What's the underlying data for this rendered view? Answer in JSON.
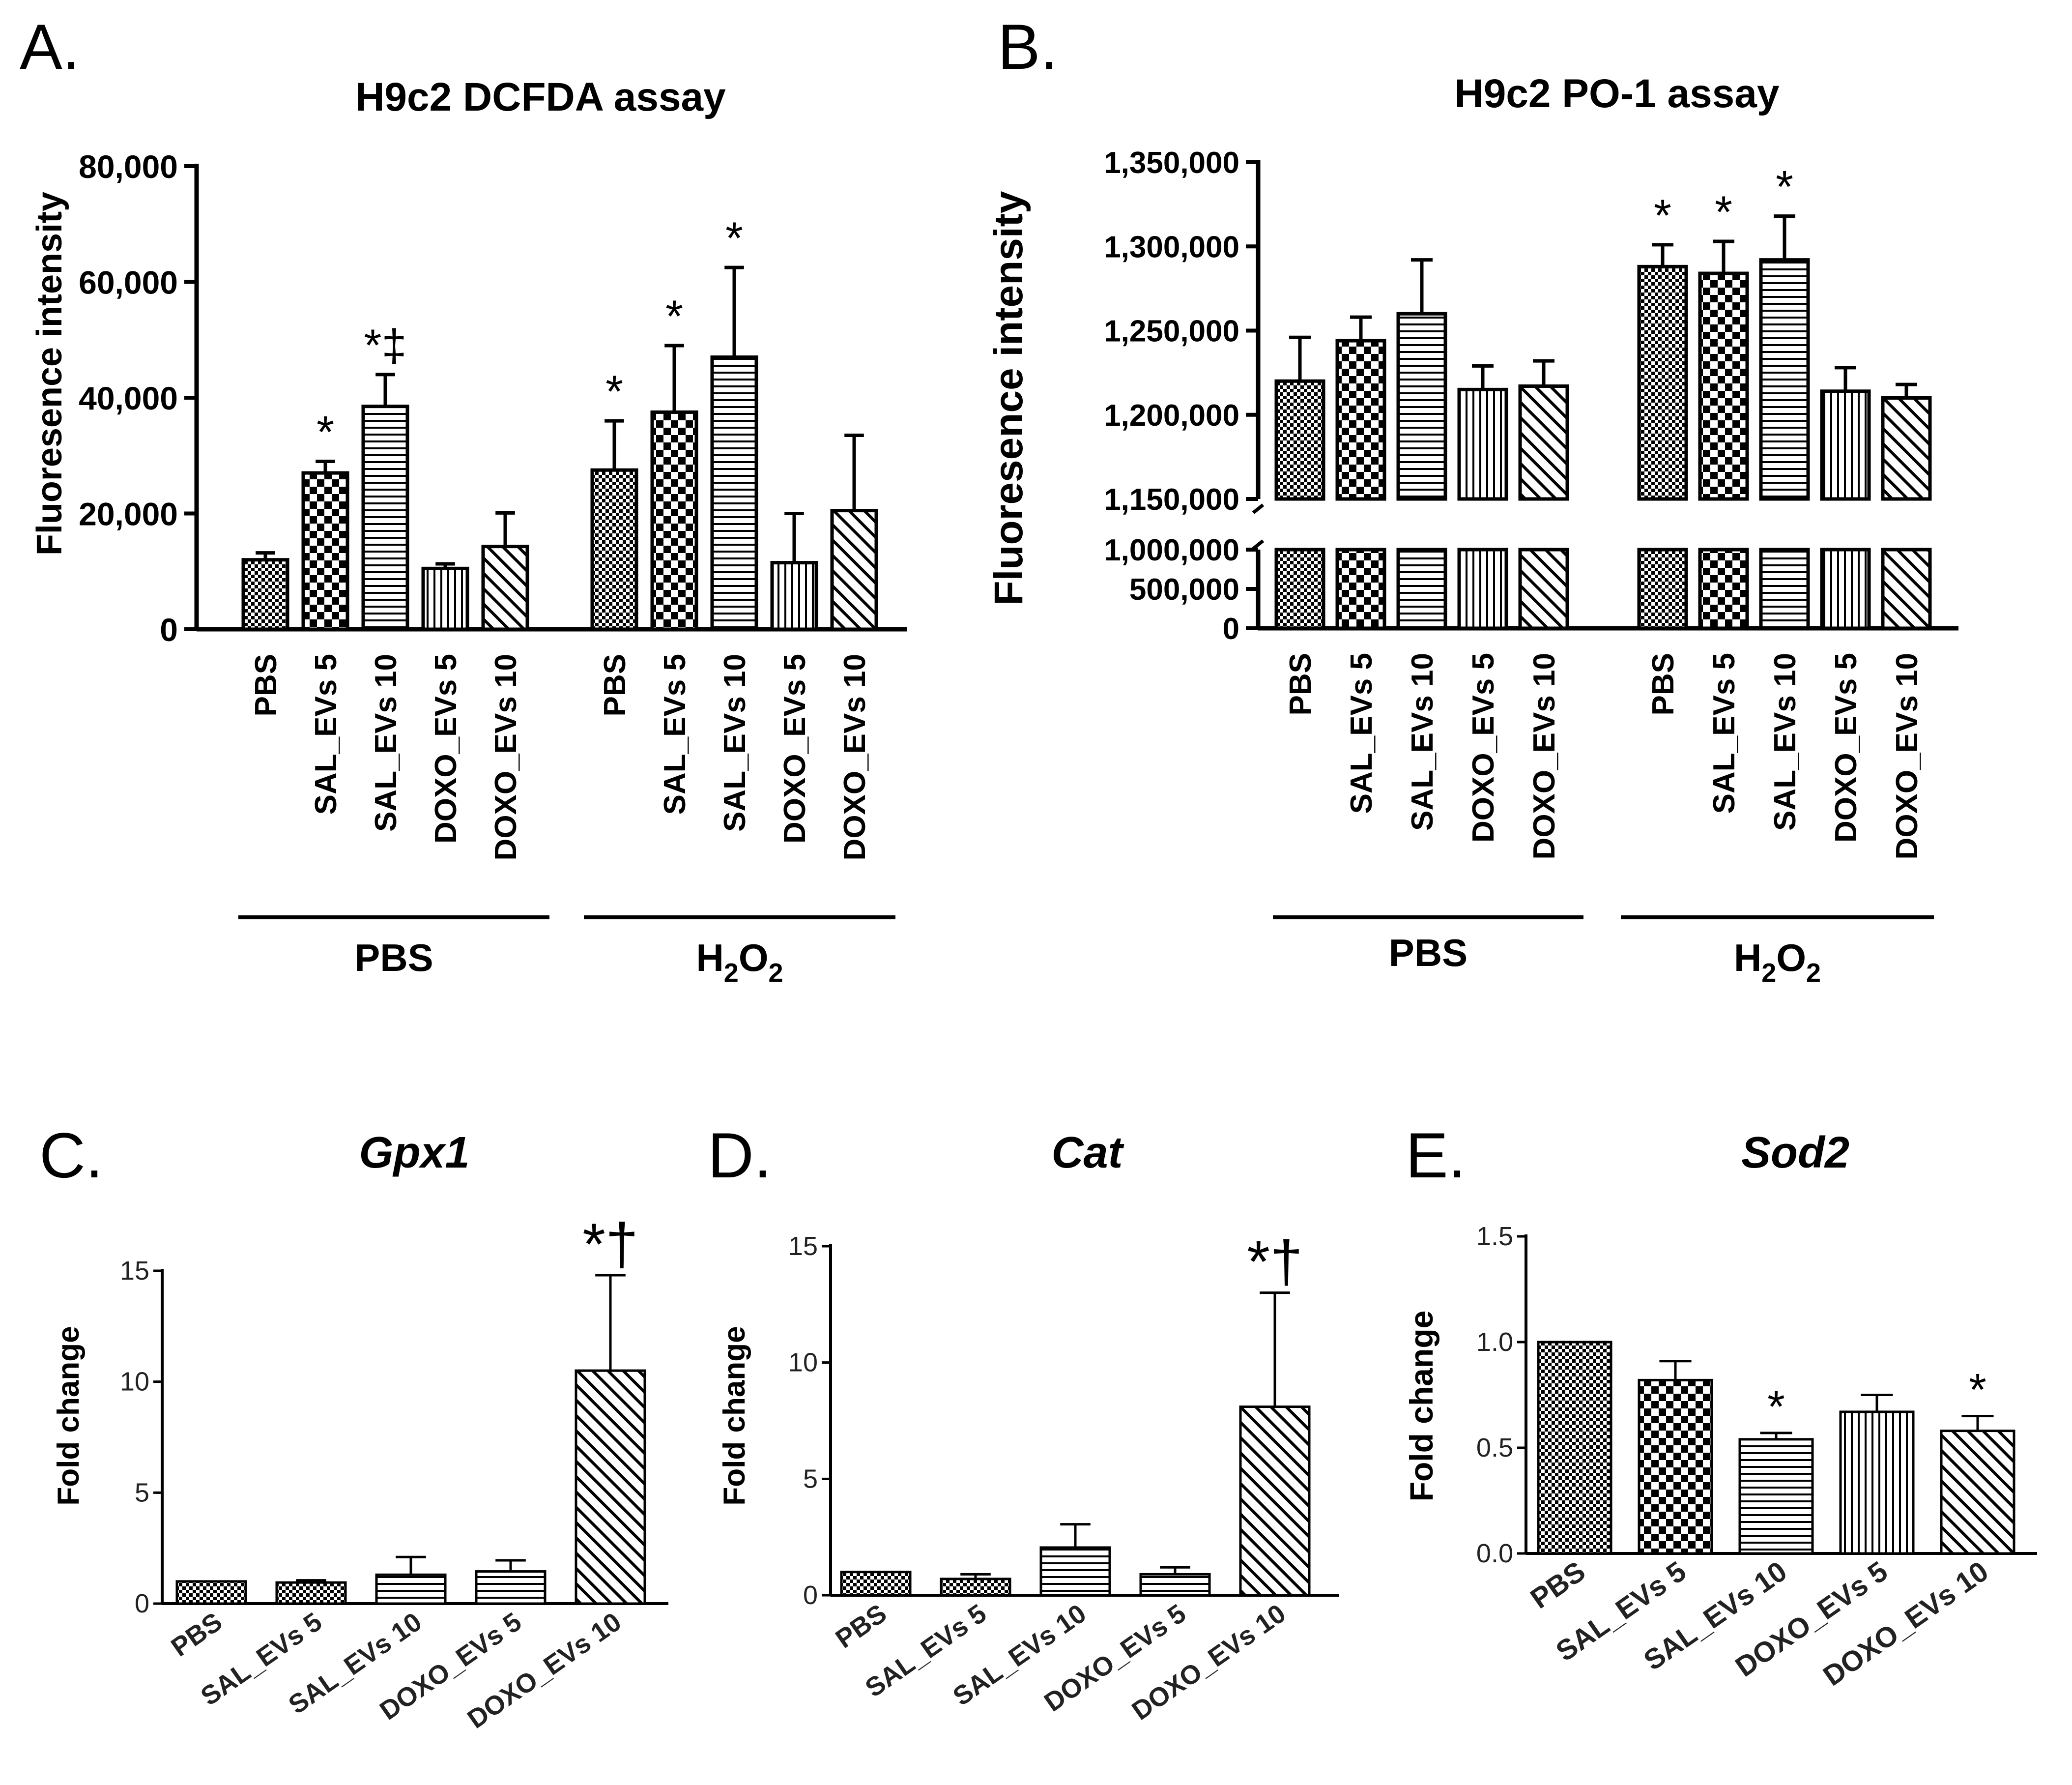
{
  "colors": {
    "ink": "#000000",
    "background": "#ffffff"
  },
  "chart_data": [
    {
      "panel_label": "A.",
      "type": "bar",
      "title": "H9c2 DCFDA assay",
      "ylabel": "Fluoresence intensity",
      "ylim": [
        0,
        80000
      ],
      "yticks": [
        "0",
        "20,000",
        "40,000",
        "60,000",
        "80,000"
      ],
      "ytick_values": [
        0,
        20000,
        40000,
        60000,
        80000
      ],
      "axis_break": false,
      "groups": [
        {
          "label": "PBS",
          "categories": [
            "PBS",
            "SAL_EVs 5",
            "SAL_EVs 10",
            "DOXO_EVs 5",
            "DOXO_EVs 10"
          ],
          "patterns": [
            "fine-check",
            "check",
            "horizontal",
            "vertical",
            "diagonal"
          ],
          "values": [
            12000,
            27000,
            38500,
            10500,
            14300
          ],
          "errors": [
            1200,
            2000,
            5500,
            800,
            5800
          ],
          "annotations": [
            "",
            "*",
            "*‡",
            "",
            ""
          ]
        },
        {
          "label": "H2O2",
          "label_main": "H",
          "label_sub1": "2",
          "label_mid": "O",
          "label_sub2": "2",
          "categories": [
            "PBS",
            "SAL_EVs 5",
            "SAL_EVs 10",
            "DOXO_EVs 5",
            "DOXO_EVs 10"
          ],
          "patterns": [
            "fine-check",
            "check",
            "horizontal",
            "vertical",
            "diagonal"
          ],
          "values": [
            27500,
            37500,
            47000,
            11500,
            20500
          ],
          "errors": [
            8500,
            11500,
            15500,
            8500,
            13000
          ],
          "annotations": [
            "*",
            "*",
            "*",
            "",
            ""
          ]
        }
      ]
    },
    {
      "panel_label": "B.",
      "type": "bar",
      "title": "H9c2 PO-1 assay",
      "ylabel": "Fluoresence intensity",
      "ylim": [
        0,
        1350000
      ],
      "axis_break": true,
      "break_between": [
        1000000,
        1150000
      ],
      "yticks": [
        "0",
        "500,000",
        "1,000,000",
        "1,150,000",
        "1,200,000",
        "1,250,000",
        "1,300,000",
        "1,350,000"
      ],
      "ytick_values": [
        0,
        500000,
        1000000,
        1150000,
        1200000,
        1250000,
        1300000,
        1350000
      ],
      "groups": [
        {
          "label": "PBS",
          "categories": [
            "PBS",
            "SAL_EVs 5",
            "SAL_EVs 10",
            "DOXO_EVs 5",
            "DOXO_EVs 10"
          ],
          "patterns": [
            "fine-check",
            "check",
            "horizontal",
            "vertical",
            "diagonal"
          ],
          "values": [
            1220000,
            1244000,
            1260000,
            1215000,
            1217000
          ],
          "errors": [
            26000,
            14000,
            32000,
            14000,
            15000
          ],
          "annotations": [
            "",
            "",
            "",
            "",
            ""
          ]
        },
        {
          "label": "H2O2",
          "label_main": "H",
          "label_sub1": "2",
          "label_mid": "O",
          "label_sub2": "2",
          "categories": [
            "PBS",
            "SAL_EVs 5",
            "SAL_EVs 10",
            "DOXO_EVs 5",
            "DOXO_EVs 10"
          ],
          "patterns": [
            "fine-check",
            "check",
            "horizontal",
            "vertical",
            "diagonal"
          ],
          "values": [
            1288000,
            1284000,
            1292000,
            1214000,
            1210000
          ],
          "errors": [
            13000,
            19000,
            26000,
            14000,
            8000
          ],
          "annotations": [
            "*",
            "*",
            "*",
            "",
            ""
          ]
        }
      ]
    },
    {
      "panel_label": "C.",
      "type": "bar",
      "title": "Gpx1",
      "ylabel": "Fold change",
      "ylim": [
        0,
        15
      ],
      "yticks": [
        "0",
        "5",
        "10",
        "15"
      ],
      "ytick_values": [
        0,
        5,
        10,
        15
      ],
      "categories": [
        "PBS",
        "SAL_EVs 5",
        "SAL_EVs 10",
        "DOXO_EVs 5",
        "DOXO_EVs 10"
      ],
      "patterns": [
        "fine-check",
        "fine-check",
        "horizontal",
        "horizontal",
        "diagonal"
      ],
      "values": [
        1.0,
        0.95,
        1.3,
        1.45,
        10.5
      ],
      "errors": [
        0,
        0.1,
        0.8,
        0.5,
        4.3
      ],
      "annotations": [
        "",
        "",
        "",
        "",
        "*†"
      ]
    },
    {
      "panel_label": "D.",
      "type": "bar",
      "title": "Cat",
      "ylabel": "Fold change",
      "ylim": [
        0,
        15
      ],
      "yticks": [
        "0",
        "5",
        "10",
        "15"
      ],
      "ytick_values": [
        0,
        5,
        10,
        15
      ],
      "categories": [
        "PBS",
        "SAL_EVs 5",
        "SAL_EVs 10",
        "DOXO_EVs 5",
        "DOXO_EVs 10"
      ],
      "patterns": [
        "fine-check",
        "fine-check",
        "horizontal",
        "horizontal",
        "diagonal"
      ],
      "values": [
        1.0,
        0.7,
        2.05,
        0.9,
        8.1
      ],
      "errors": [
        0,
        0.2,
        1.0,
        0.3,
        4.9
      ],
      "annotations": [
        "",
        "",
        "",
        "",
        "*†"
      ]
    },
    {
      "panel_label": "E.",
      "type": "bar",
      "title": "Sod2",
      "ylabel": "Fold change",
      "ylim": [
        0,
        1.5
      ],
      "yticks": [
        "0.0",
        "0.5",
        "1.0",
        "1.5"
      ],
      "ytick_values": [
        0,
        0.5,
        1.0,
        1.5
      ],
      "categories": [
        "PBS",
        "SAL_EVs 5",
        "SAL_EVs 10",
        "DOXO_EVs 5",
        "DOXO_EVs 10"
      ],
      "patterns": [
        "fine-check",
        "check",
        "horizontal",
        "vertical",
        "diagonal"
      ],
      "values": [
        1.0,
        0.82,
        0.54,
        0.67,
        0.58
      ],
      "errors": [
        0,
        0.09,
        0.03,
        0.08,
        0.07
      ],
      "annotations": [
        "",
        "",
        "*",
        "",
        "*"
      ]
    }
  ]
}
